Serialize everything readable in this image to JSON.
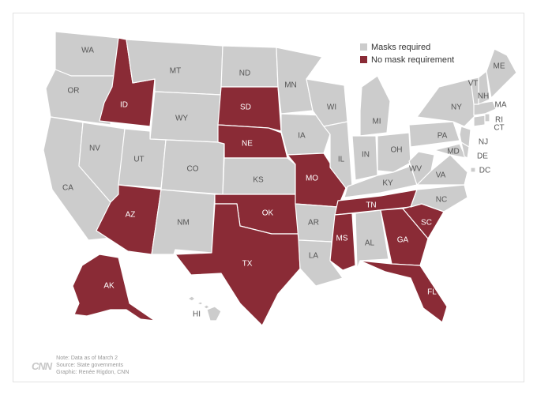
{
  "legend": {
    "items": [
      {
        "label": "Masks required",
        "color": "#cccccc"
      },
      {
        "label": "No mask requirement",
        "color": "#8a2b36"
      }
    ]
  },
  "colors": {
    "required": "#cccccc",
    "none": "#8a2b36",
    "border": "#ffffff",
    "label_dark": "#555555",
    "label_light": "#ffffff"
  },
  "states": {
    "WA": "required",
    "OR": "required",
    "CA": "required",
    "NV": "required",
    "ID": "none",
    "MT": "required",
    "WY": "required",
    "UT": "required",
    "AZ": "none",
    "CO": "required",
    "NM": "required",
    "ND": "required",
    "SD": "none",
    "NE": "none",
    "KS": "required",
    "OK": "none",
    "TX": "none",
    "MN": "required",
    "IA": "required",
    "MO": "none",
    "AR": "required",
    "LA": "required",
    "WI": "required",
    "IL": "required",
    "MS": "none",
    "MI": "required",
    "IN": "required",
    "KY": "required",
    "TN": "none",
    "AL": "required",
    "OH": "required",
    "GA": "none",
    "FL": "none",
    "SC": "none",
    "NC": "required",
    "WV": "required",
    "VA": "required",
    "PA": "required",
    "NY": "required",
    "MD": "required",
    "DE": "required",
    "NJ": "required",
    "CT": "required",
    "RI": "required",
    "MA": "required",
    "VT": "required",
    "NH": "required",
    "ME": "required",
    "AK": "none",
    "HI": "required",
    "DC": "required"
  },
  "footer": {
    "logo": "CNN",
    "note": "Note: Data as of March 2",
    "source": "Source: State governments",
    "graphic": "Graphic: Renée Rigdon, CNN"
  }
}
